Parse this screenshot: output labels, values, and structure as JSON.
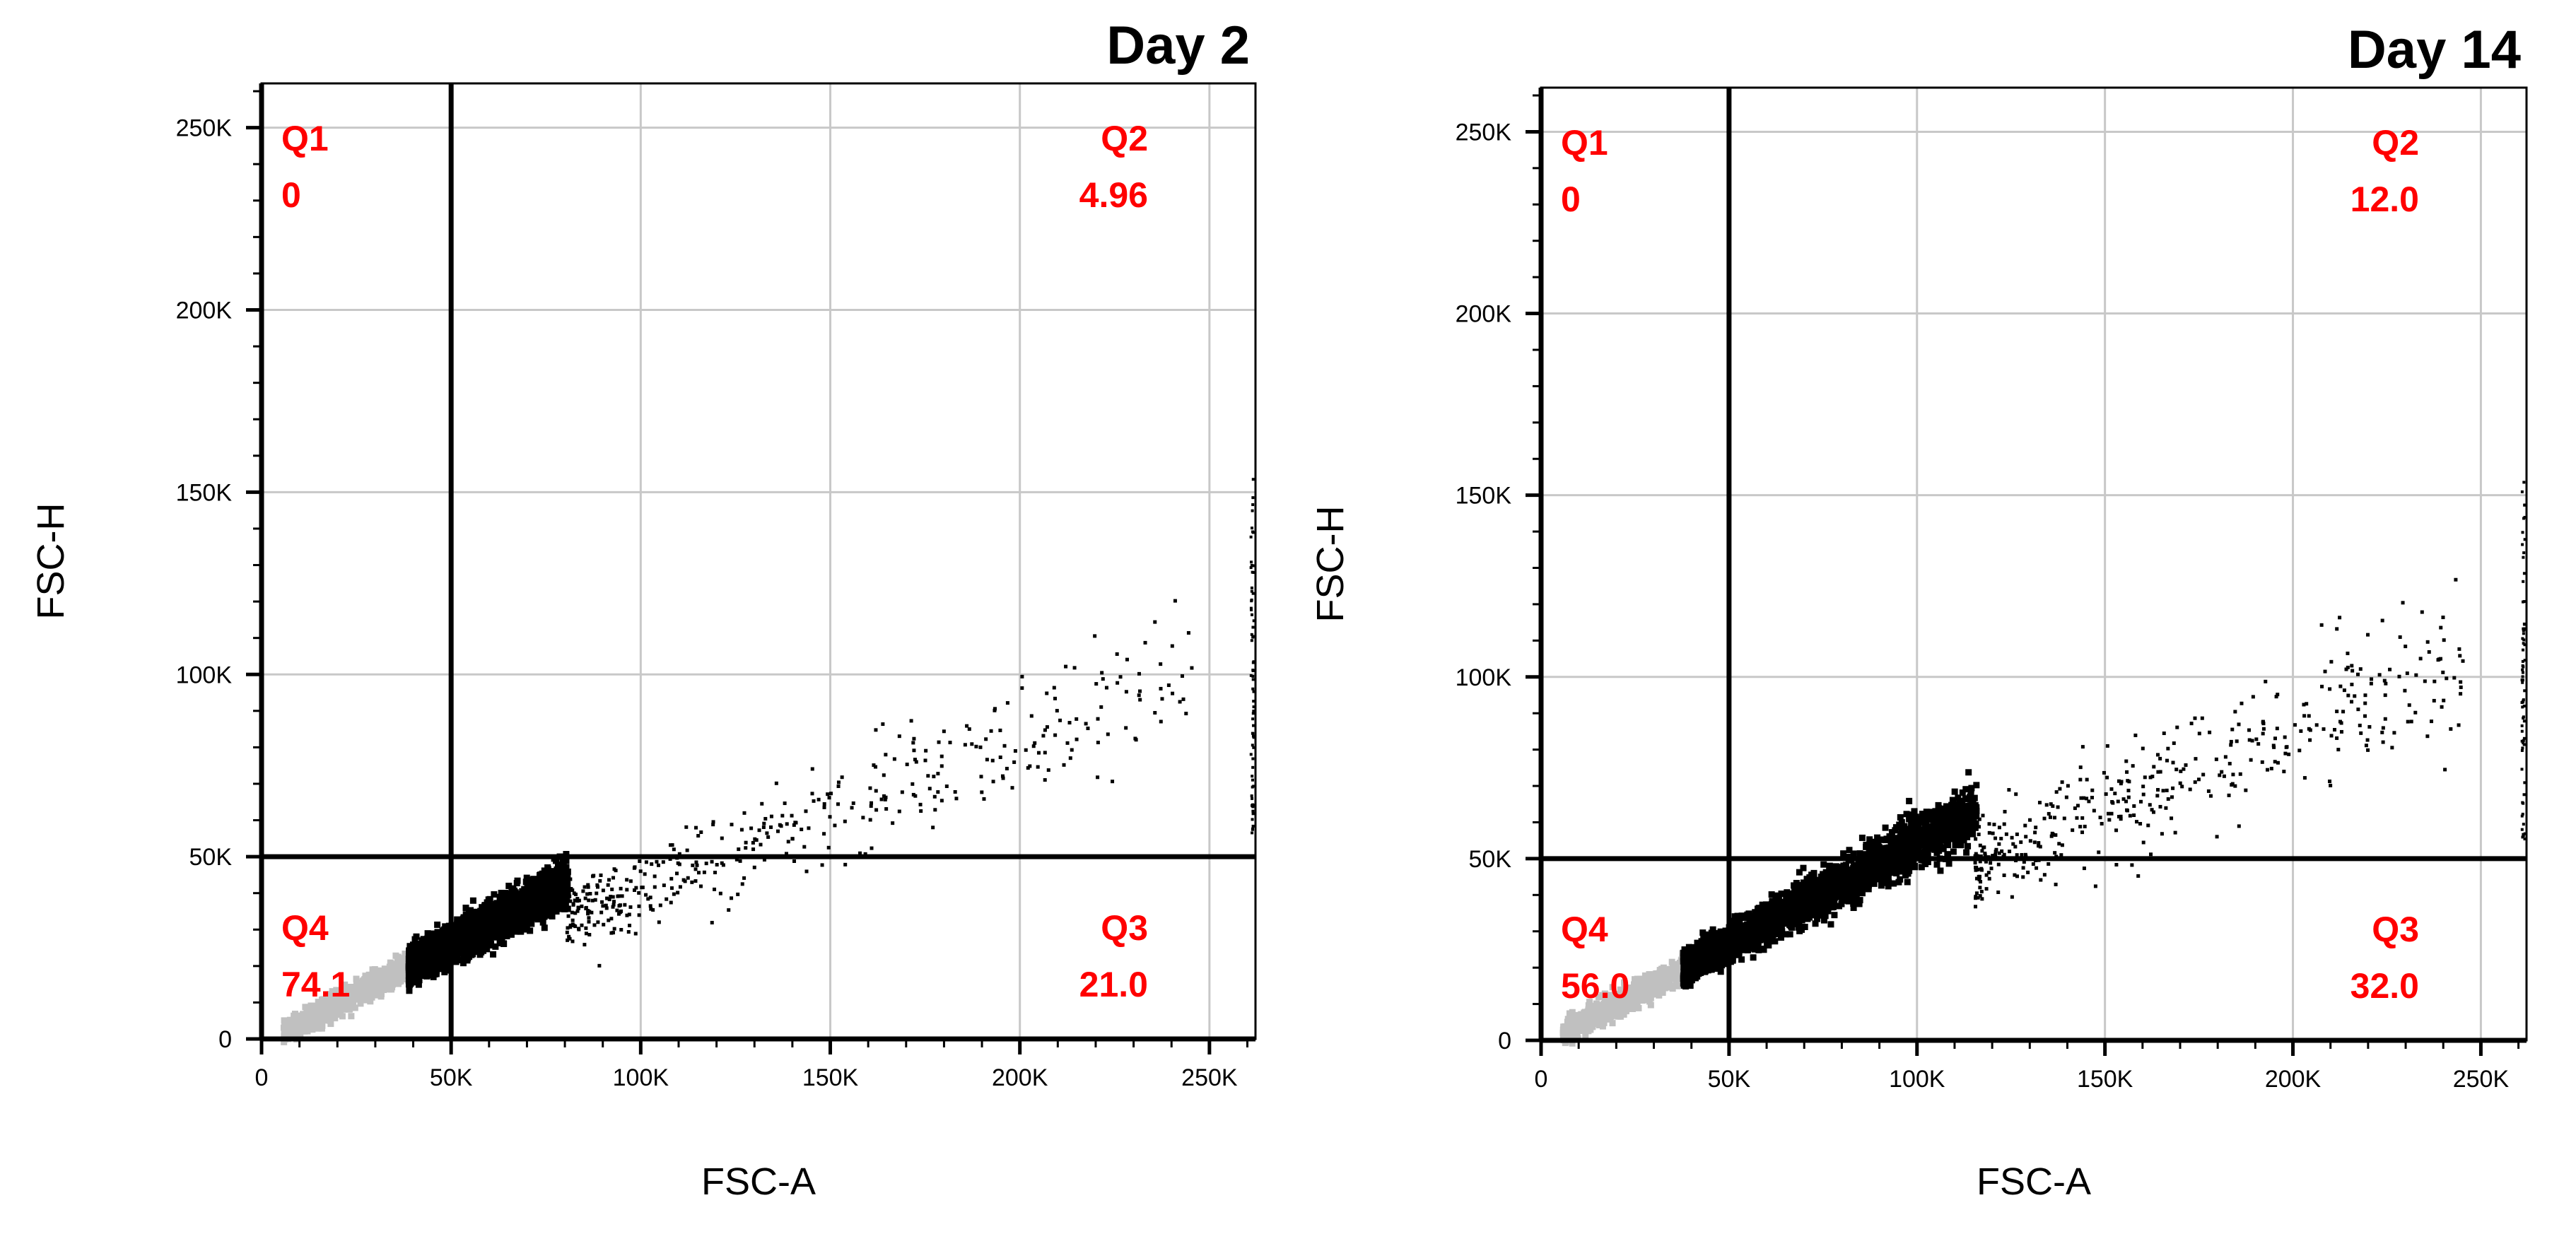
{
  "colors": {
    "quadrant_text": "#ff0000",
    "grid": "#c8c8c8",
    "gated_events": "#000000",
    "ungated_events": "#c0c0c0",
    "gate_lines": "#000000"
  },
  "chart_data": [
    {
      "type": "scatter",
      "title": "Day 2",
      "xlabel": "FSC-A",
      "ylabel": "FSC-H",
      "xlim": [
        0,
        262144
      ],
      "ylim": [
        0,
        262144
      ],
      "x_ticks": [
        0,
        50000,
        100000,
        150000,
        200000,
        250000
      ],
      "x_tick_labels": [
        "0",
        "50K",
        "100K",
        "150K",
        "200K",
        "250K"
      ],
      "y_ticks": [
        0,
        50000,
        100000,
        150000,
        200000,
        250000
      ],
      "y_tick_labels": [
        "0",
        "50K",
        "100K",
        "150K",
        "200K",
        "250K"
      ],
      "grid": true,
      "gate": {
        "x": 50000,
        "y": 50000
      },
      "quadrants": [
        {
          "name": "Q1",
          "value": "0",
          "position": "top-left"
        },
        {
          "name": "Q2",
          "value": "4.96",
          "position": "top-right"
        },
        {
          "name": "Q3",
          "value": "21.0",
          "position": "bottom-right"
        },
        {
          "name": "Q4",
          "value": "74.1",
          "position": "bottom-left"
        }
      ],
      "population": {
        "gray_x_range": [
          5000,
          38000
        ],
        "dense_x_range": [
          38000,
          80000
        ],
        "sparse_x_range": [
          80000,
          245000
        ],
        "ratio": 0.55,
        "sparse_ratio": 0.42
      }
    },
    {
      "type": "scatter",
      "title": "Day 14",
      "xlabel": "FSC-A",
      "ylabel": "FSC-H",
      "xlim": [
        0,
        262144
      ],
      "ylim": [
        0,
        262144
      ],
      "x_ticks": [
        0,
        50000,
        100000,
        150000,
        200000,
        250000
      ],
      "x_tick_labels": [
        "0",
        "50K",
        "100K",
        "150K",
        "200K",
        "250K"
      ],
      "y_ticks": [
        0,
        50000,
        100000,
        150000,
        200000,
        250000
      ],
      "y_tick_labels": [
        "0",
        "50K",
        "100K",
        "150K",
        "200K",
        "250K"
      ],
      "grid": true,
      "gate": {
        "x": 50000,
        "y": 50000
      },
      "quadrants": [
        {
          "name": "Q1",
          "value": "0",
          "position": "top-left"
        },
        {
          "name": "Q2",
          "value": "12.0",
          "position": "top-right"
        },
        {
          "name": "Q3",
          "value": "32.0",
          "position": "bottom-right"
        },
        {
          "name": "Q4",
          "value": "56.0",
          "position": "bottom-left"
        }
      ],
      "population": {
        "gray_x_range": [
          5000,
          37000
        ],
        "dense_x_range": [
          37000,
          115000
        ],
        "sparse_x_range": [
          115000,
          245000
        ],
        "ratio": 0.56,
        "sparse_ratio": 0.43
      }
    }
  ]
}
